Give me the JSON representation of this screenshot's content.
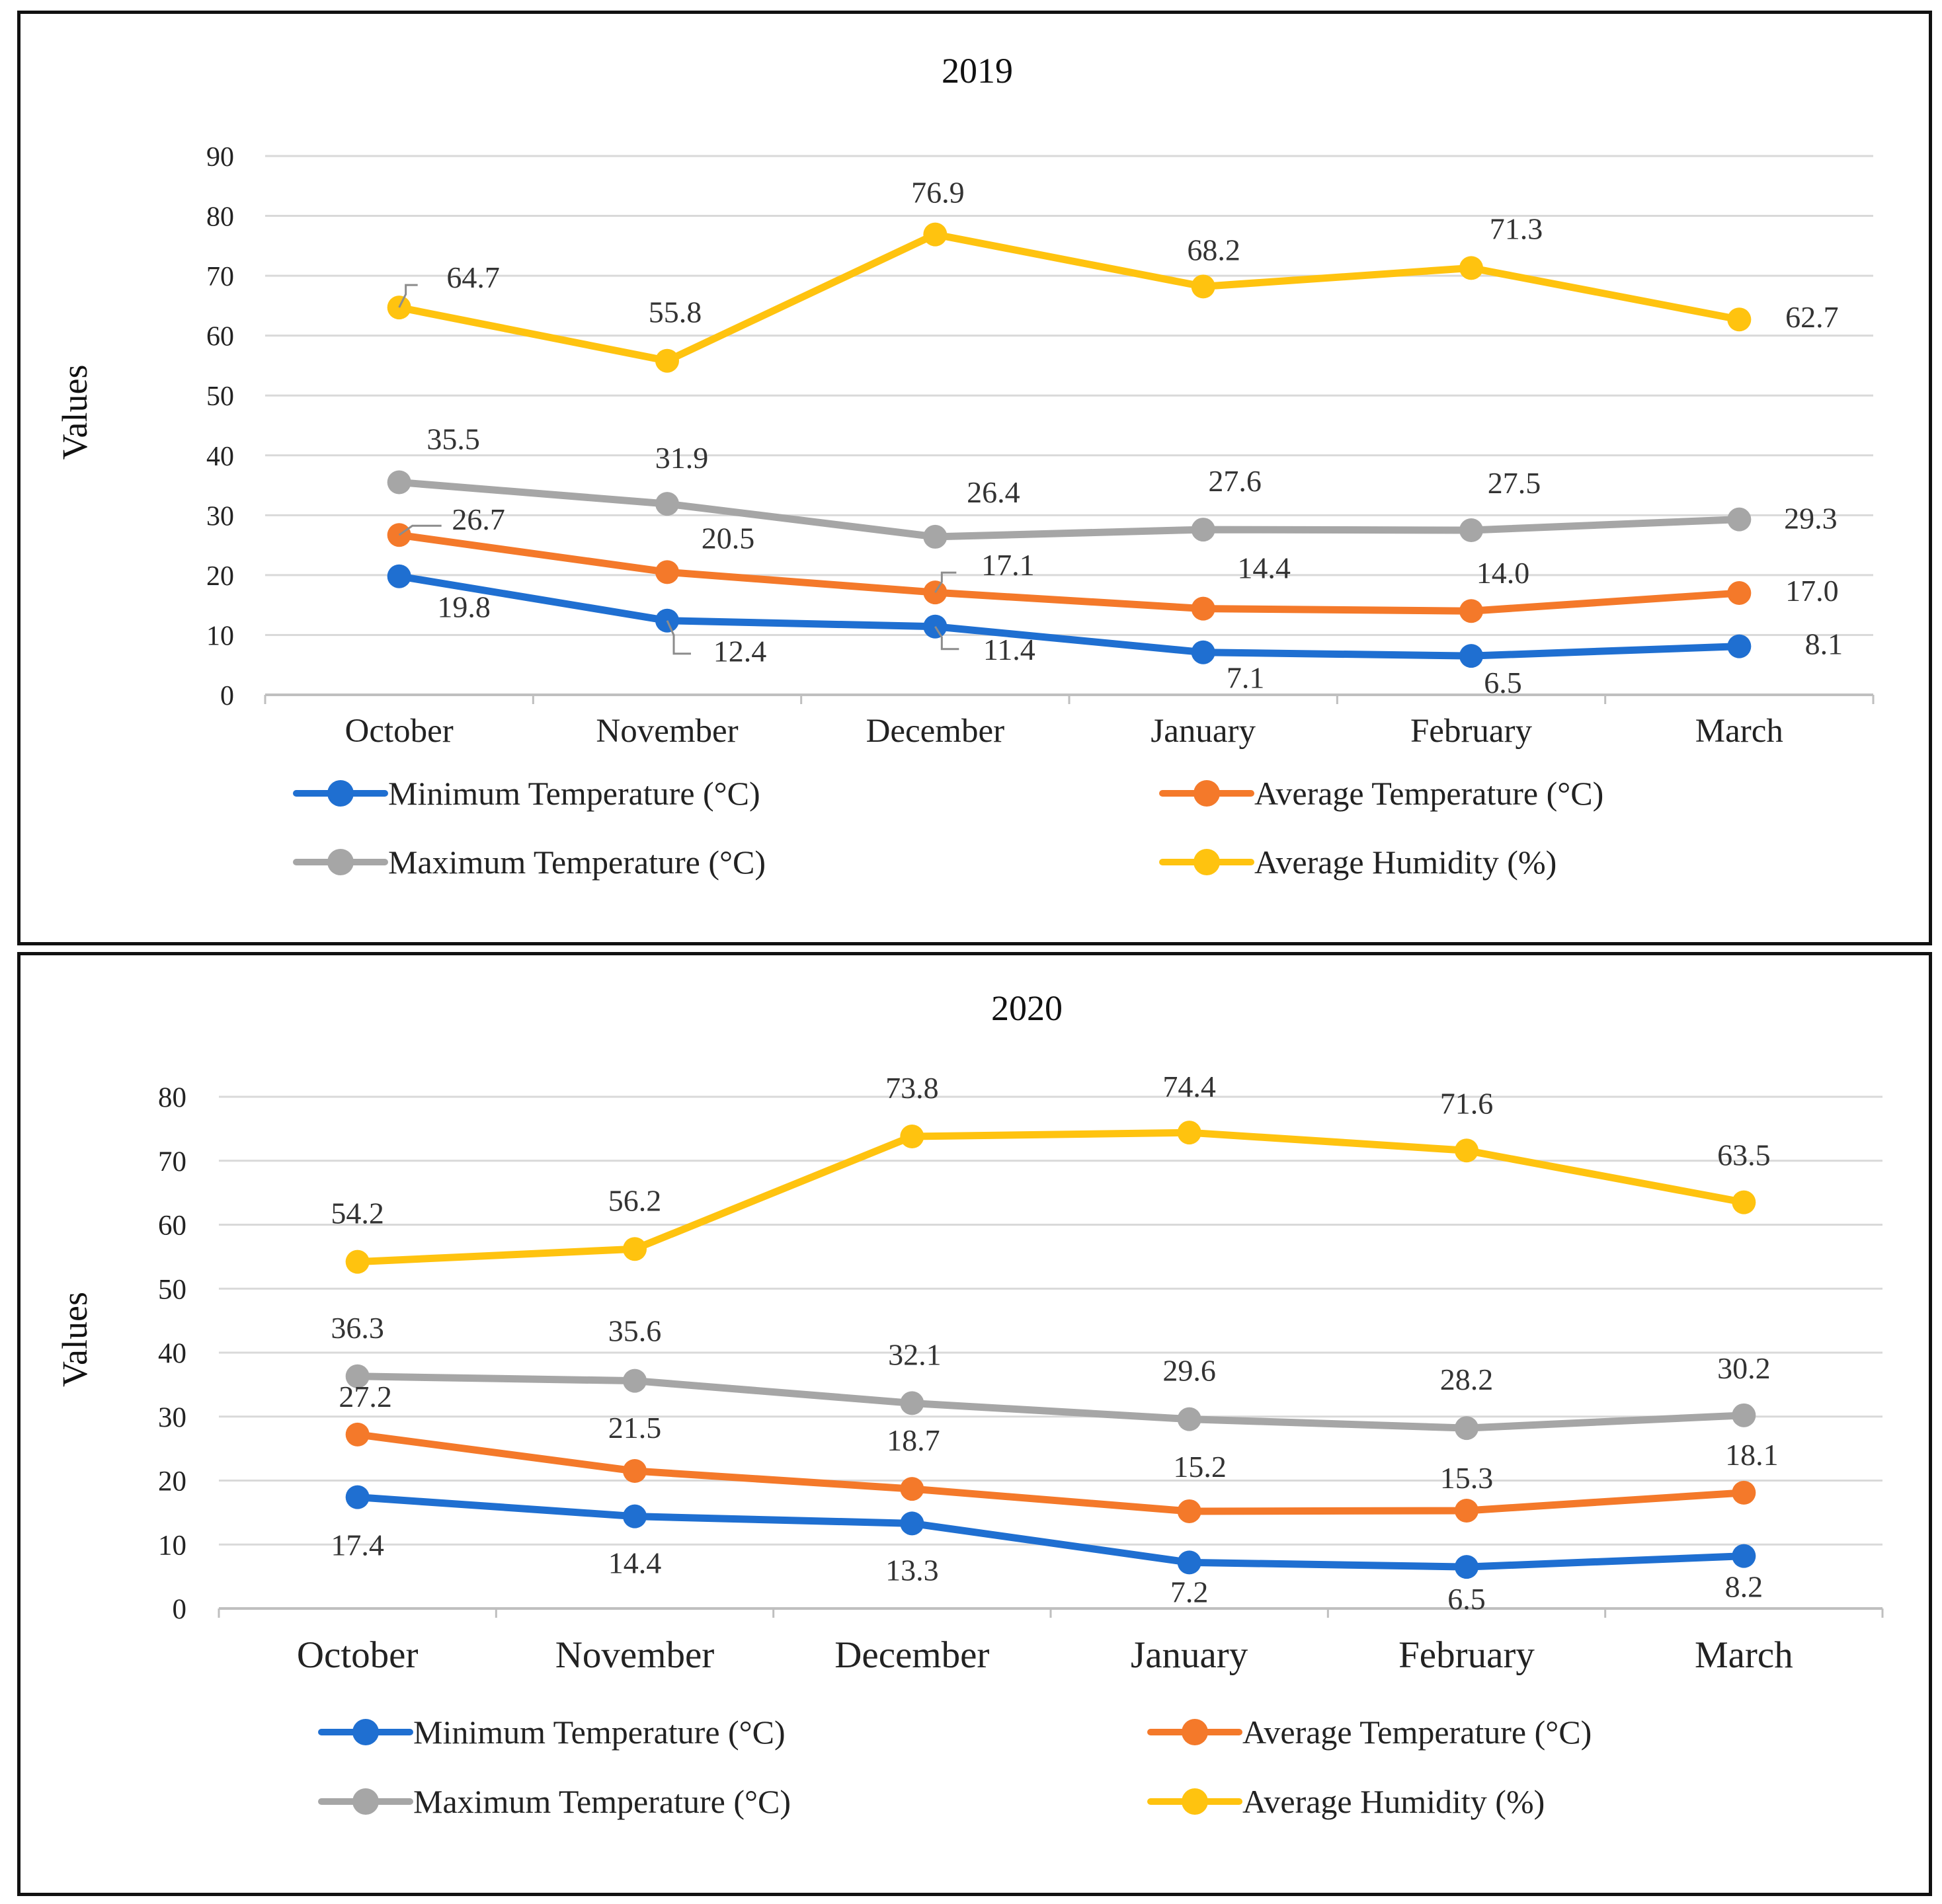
{
  "chart_data": [
    {
      "type": "line",
      "title": "2019",
      "ylabel": "Values",
      "xlabel": "",
      "ylim": [
        0,
        90
      ],
      "yticks": [
        0,
        10,
        20,
        30,
        40,
        50,
        60,
        70,
        80,
        90
      ],
      "grid": true,
      "legend_position": "bottom",
      "categories": [
        "October",
        "November",
        "December",
        "January",
        "February",
        "March"
      ],
      "series": [
        {
          "name": "Minimum Temperature (°C)",
          "color": "#1F6FD1",
          "values": [
            19.8,
            12.4,
            11.4,
            7.1,
            6.5,
            8.1
          ],
          "labels": [
            "19.8",
            "12.4",
            "11.4",
            "7.1",
            "6.5",
            "8.1"
          ]
        },
        {
          "name": "Average Temperature (°C)",
          "color": "#F4792A",
          "values": [
            26.7,
            20.5,
            17.1,
            14.4,
            14.0,
            17.0
          ],
          "labels": [
            "26.7",
            "20.5",
            "17.1",
            "14.4",
            "14.0",
            "17.0"
          ]
        },
        {
          "name": "Maximum Temperature (°C)",
          "color": "#A6A6A6",
          "values": [
            35.5,
            31.9,
            26.4,
            27.6,
            27.5,
            29.3
          ],
          "labels": [
            "35.5",
            "31.9",
            "26.4",
            "27.6",
            "27.5",
            "29.3"
          ]
        },
        {
          "name": "Average Humidity (%)",
          "color": "#FFC30F",
          "values": [
            64.7,
            55.8,
            76.9,
            68.2,
            71.3,
            62.7
          ],
          "labels": [
            "64.7",
            "55.8",
            "76.9",
            "68.2",
            "71.3",
            "62.7"
          ]
        }
      ]
    },
    {
      "type": "line",
      "title": "2020",
      "ylabel": "Values",
      "xlabel": "",
      "ylim": [
        0,
        80
      ],
      "yticks": [
        0,
        10,
        20,
        30,
        40,
        50,
        60,
        70,
        80
      ],
      "grid": true,
      "legend_position": "bottom",
      "categories": [
        "October",
        "November",
        "December",
        "January",
        "February",
        "March"
      ],
      "series": [
        {
          "name": "Minimum Temperature (°C)",
          "color": "#1F6FD1",
          "values": [
            17.4,
            14.4,
            13.3,
            7.2,
            6.5,
            8.2
          ],
          "labels": [
            "17.4",
            "14.4",
            "13.3",
            "7.2",
            "6.5",
            "8.2"
          ]
        },
        {
          "name": "Average Temperature (°C)",
          "color": "#F4792A",
          "values": [
            27.2,
            21.5,
            18.7,
            15.2,
            15.3,
            18.1
          ],
          "labels": [
            "27.2",
            "21.5",
            "18.7",
            "15.2",
            "15.3",
            "18.1"
          ]
        },
        {
          "name": "Maximum Temperature (°C)",
          "color": "#A6A6A6",
          "values": [
            36.3,
            35.6,
            32.1,
            29.6,
            28.2,
            30.2
          ],
          "labels": [
            "36.3",
            "35.6",
            "32.1",
            "29.6",
            "28.2",
            "30.2"
          ]
        },
        {
          "name": "Average Humidity (%)",
          "color": "#FFC30F",
          "values": [
            54.2,
            56.2,
            73.8,
            74.4,
            71.6,
            63.5
          ],
          "labels": [
            "54.2",
            "56.2",
            "73.8",
            "74.4",
            "71.6",
            "63.5"
          ]
        }
      ]
    }
  ]
}
